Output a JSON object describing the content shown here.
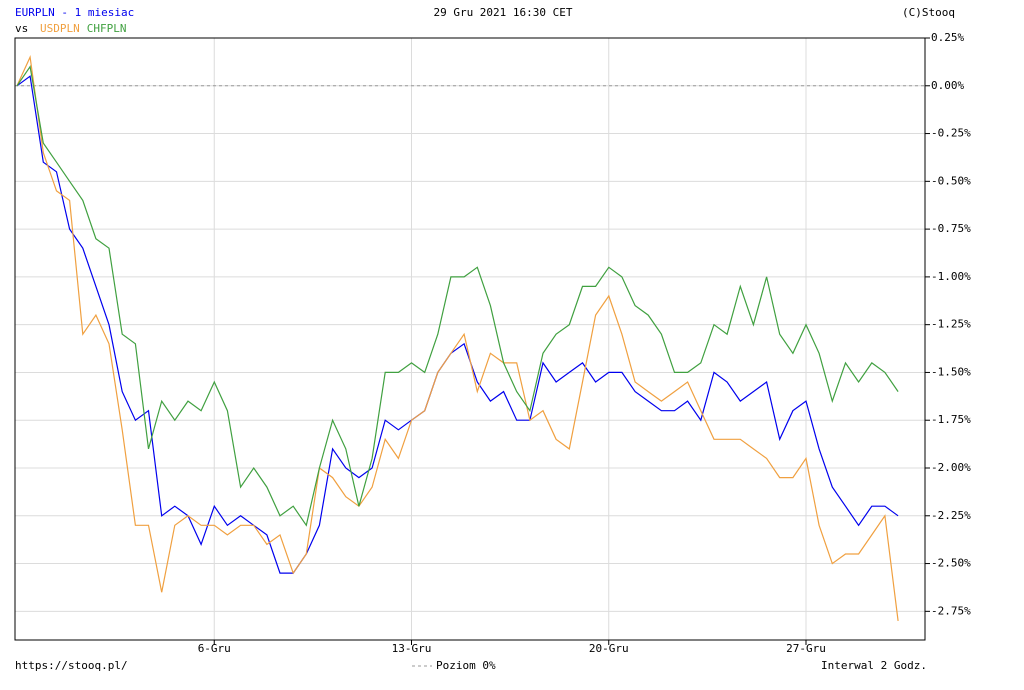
{
  "chart_data": {
    "type": "line",
    "title": "EURPLN - 1 miesiac",
    "timestamp": "29 Gru 2021 16:30 CET",
    "copyright": "(C)Stooq",
    "legend_prefix": "vs",
    "footer_left": "https://stooq.pl/",
    "footer_right": "Interwal 2 Godz.",
    "zero_line": {
      "value": 0,
      "label": "Poziom 0%"
    },
    "categories": [
      null,
      null,
      null,
      null,
      null,
      null,
      null,
      null,
      null,
      null,
      null,
      null,
      null,
      null,
      null,
      "6-Gru",
      null,
      null,
      null,
      null,
      null,
      null,
      null,
      null,
      null,
      null,
      null,
      null,
      null,
      null,
      "13-Gru",
      null,
      null,
      null,
      null,
      null,
      null,
      null,
      null,
      null,
      null,
      null,
      null,
      null,
      null,
      "20-Gru",
      null,
      null,
      null,
      null,
      null,
      null,
      null,
      null,
      null,
      null,
      null,
      null,
      null,
      null,
      "27-Gru",
      null,
      null,
      null,
      null,
      null,
      null,
      null
    ],
    "series": [
      {
        "color": "#0000ee",
        "values": [
          0,
          0.05,
          -0.4,
          -0.45,
          -0.75,
          -0.85,
          -1.05,
          -1.25,
          -1.6,
          -1.75,
          -1.7,
          -2.25,
          -2.2,
          -2.25,
          -2.4,
          -2.2,
          -2.3,
          -2.25,
          -2.3,
          -2.35,
          -2.55,
          -2.55,
          -2.45,
          -2.3,
          -1.9,
          -2.0,
          -2.05,
          -2.0,
          -1.75,
          -1.8,
          -1.75,
          -1.7,
          -1.5,
          -1.4,
          -1.35,
          -1.55,
          -1.65,
          -1.6,
          -1.75,
          -1.75,
          -1.45,
          -1.55,
          -1.5,
          -1.45,
          -1.55,
          -1.5,
          -1.5,
          -1.6,
          -1.65,
          -1.7,
          -1.7,
          -1.65,
          -1.75,
          -1.5,
          -1.55,
          -1.65,
          -1.6,
          -1.55,
          -1.85,
          -1.7,
          -1.65,
          -1.9,
          -2.1,
          -2.2,
          -2.3,
          -2.2,
          -2.2,
          -2.25
        ]
      },
      {
        "name": "USDPLN",
        "color": "#f0a040",
        "values": [
          0,
          0.15,
          -0.35,
          -0.55,
          -0.6,
          -1.3,
          -1.2,
          -1.35,
          -1.8,
          -2.3,
          -2.3,
          -2.65,
          -2.3,
          -2.25,
          -2.3,
          -2.3,
          -2.35,
          -2.3,
          -2.3,
          -2.4,
          -2.35,
          -2.55,
          -2.45,
          -2.0,
          -2.05,
          -2.15,
          -2.2,
          -2.1,
          -1.85,
          -1.95,
          -1.75,
          -1.7,
          -1.5,
          -1.4,
          -1.3,
          -1.6,
          -1.4,
          -1.45,
          -1.45,
          -1.75,
          -1.7,
          -1.85,
          -1.9,
          -1.55,
          -1.2,
          -1.1,
          -1.3,
          -1.55,
          -1.6,
          -1.65,
          -1.6,
          -1.55,
          -1.7,
          -1.85,
          -1.85,
          -1.85,
          -1.9,
          -1.95,
          -2.05,
          -2.05,
          -1.95,
          -2.3,
          -2.5,
          -2.45,
          -2.45,
          -2.35,
          -2.25,
          -2.8
        ]
      },
      {
        "name": "CHFPLN",
        "color": "#40a040",
        "values": [
          0,
          0.1,
          -0.3,
          -0.4,
          -0.5,
          -0.6,
          -0.8,
          -0.85,
          -1.3,
          -1.35,
          -1.9,
          -1.65,
          -1.75,
          -1.65,
          -1.7,
          -1.55,
          -1.7,
          -2.1,
          -2.0,
          -2.1,
          -2.25,
          -2.2,
          -2.3,
          -2.0,
          -1.75,
          -1.9,
          -2.2,
          -1.95,
          -1.5,
          -1.5,
          -1.45,
          -1.5,
          -1.3,
          -1.0,
          -1.0,
          -0.95,
          -1.15,
          -1.45,
          -1.6,
          -1.7,
          -1.4,
          -1.3,
          -1.25,
          -1.05,
          -1.05,
          -0.95,
          -1.0,
          -1.15,
          -1.2,
          -1.3,
          -1.5,
          -1.5,
          -1.45,
          -1.25,
          -1.3,
          -1.05,
          -1.25,
          -1.0,
          -1.3,
          -1.4,
          -1.25,
          -1.4,
          -1.65,
          -1.45,
          -1.55,
          -1.45,
          -1.5,
          -1.6
        ]
      }
    ],
    "ylim": [
      -2.9,
      0.25
    ],
    "yticks": [
      {
        "value": 0.25,
        "label": "0.25%"
      },
      {
        "value": 0,
        "label": "0.00%"
      },
      {
        "value": -0.25,
        "label": "-0.25%"
      },
      {
        "value": -0.5,
        "label": "-0.50%"
      },
      {
        "value": -0.75,
        "label": "-0.75%"
      },
      {
        "value": -1,
        "label": "-1.00%"
      },
      {
        "value": -1.25,
        "label": "-1.25%"
      },
      {
        "value": -1.5,
        "label": "-1.50%"
      },
      {
        "value": -1.75,
        "label": "-1.75%"
      },
      {
        "value": -2,
        "label": "-2.00%"
      },
      {
        "value": -2.25,
        "label": "-2.25%"
      },
      {
        "value": -2.5,
        "label": "-2.50%"
      },
      {
        "value": -2.75,
        "label": "-2.75%"
      }
    ],
    "grid": true
  }
}
